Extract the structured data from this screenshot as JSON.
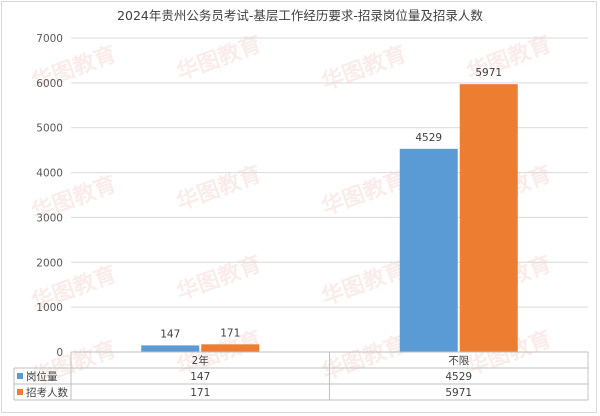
{
  "chart_data": {
    "type": "bar",
    "title": "2024年贵州公务员考试-基层工作经历要求-招录岗位量及招录人数",
    "categories": [
      "2年",
      "不限"
    ],
    "series": [
      {
        "name": "岗位量",
        "values": [
          147,
          4529
        ],
        "color": "#5b9bd5"
      },
      {
        "name": "招考人数",
        "values": [
          171,
          5971
        ],
        "color": "#ed7d31"
      }
    ],
    "ylim": [
      0,
      7000
    ],
    "yticks": [
      0,
      1000,
      2000,
      3000,
      4000,
      5000,
      6000,
      7000
    ],
    "grid": true,
    "legend": "data-table"
  },
  "watermark": "华图教育"
}
